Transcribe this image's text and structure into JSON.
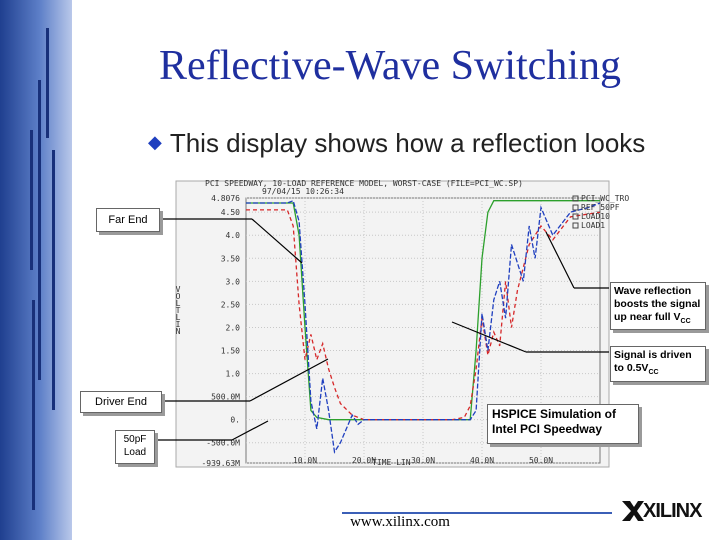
{
  "slide": {
    "title": "Reflective-Wave Switching",
    "bullet": "This display shows how a reflection looks",
    "footer_url": "www.xilinx.com",
    "logo_text": "XILINX"
  },
  "plot": {
    "header_line1": "PCI SPEEDWAY, 10-LOAD REFERENCE MODEL, WORST-CASE   (FILE=PCI_WC.SP)",
    "header_line2": "97/04/15  10:26:34",
    "y_axis_label": "VOLT LIN",
    "x_axis_label": "TIME LIN",
    "legend": [
      "PCI_WC_TRO",
      "REF_50PF",
      "LOAD10",
      "LOAD1"
    ]
  },
  "callouts": {
    "far_end": "Far End",
    "driver_end": "Driver End",
    "load": "50pF Load",
    "wave_reflection_text": "Wave reflection boosts the signal up near full V",
    "wave_reflection_sub": "CC",
    "driven_text": "Signal is driven to 0.5V",
    "driven_sub": "CC",
    "hspice": "HSPICE Simulation of Intel PCI Speedway"
  },
  "chart_data": {
    "type": "line",
    "title": "PCI SPEEDWAY, 10-LOAD REFERENCE MODEL, WORST-CASE (FILE=PCI_WC.SP)",
    "xlabel": "TIME LIN",
    "ylabel": "VOLT LIN",
    "x_ticks": [
      "10.0N",
      "20.0N",
      "30.0N",
      "40.0N",
      "50.0N"
    ],
    "y_ticks": [
      "4.8076",
      "4.50",
      "4.0",
      "3.50",
      "3.0",
      "2.50",
      "2.0",
      "1.50",
      "1.0",
      "500.0M",
      "0.",
      "-500.0M",
      "-939.63M"
    ],
    "xlim": [
      0,
      60
    ],
    "ylim": [
      -0.93963,
      4.8076
    ],
    "grid": true,
    "legend_position": "top-right",
    "series": [
      {
        "name": "PCI_WC_TRO",
        "color": "#2ca02c",
        "x": [
          0,
          8,
          9,
          10,
          11,
          12,
          14,
          20,
          30,
          38,
          39,
          40,
          41,
          42,
          50,
          60
        ],
        "y": [
          4.7,
          4.7,
          4.0,
          2.0,
          0.2,
          0.05,
          0.0,
          0.0,
          0.0,
          0.0,
          1.5,
          3.5,
          4.5,
          4.75,
          4.75,
          4.75
        ]
      },
      {
        "name": "LOAD10",
        "color": "#d62728",
        "x": [
          0,
          7,
          8,
          9,
          10,
          11,
          12,
          13,
          14,
          15,
          16,
          18,
          20,
          25,
          30,
          35,
          37,
          38,
          39,
          40,
          41,
          42,
          43,
          44,
          45,
          46,
          47,
          48,
          50,
          52,
          55,
          60
        ],
        "y": [
          4.55,
          4.55,
          4.2,
          2.5,
          1.3,
          1.85,
          1.3,
          1.65,
          1.1,
          0.7,
          0.35,
          0.1,
          0.0,
          0.0,
          0.0,
          0.0,
          0.05,
          0.3,
          1.1,
          2.2,
          1.4,
          1.9,
          1.6,
          3.0,
          2.0,
          2.8,
          3.3,
          3.8,
          4.2,
          3.9,
          4.4,
          4.5
        ]
      },
      {
        "name": "LOAD1",
        "color": "#1f3fbf",
        "x": [
          0,
          7,
          8,
          9,
          10,
          11,
          12,
          13,
          14,
          15,
          16,
          17,
          18,
          19,
          20,
          22,
          25,
          28,
          30,
          35,
          37,
          38,
          39,
          40,
          41,
          42,
          43,
          44,
          45,
          46,
          47,
          48,
          49,
          50,
          52,
          55,
          58,
          60
        ],
        "y": [
          4.7,
          4.7,
          4.75,
          4.3,
          2.5,
          0.4,
          -0.2,
          0.9,
          0.2,
          -0.7,
          -0.5,
          -0.2,
          0.1,
          -0.1,
          0.0,
          0.0,
          0.0,
          0.0,
          0.0,
          0.0,
          0.0,
          0.0,
          0.2,
          2.3,
          1.5,
          2.6,
          3.0,
          2.2,
          3.8,
          3.4,
          3.0,
          4.2,
          3.5,
          4.6,
          4.0,
          4.5,
          4.6,
          4.7
        ]
      }
    ]
  }
}
